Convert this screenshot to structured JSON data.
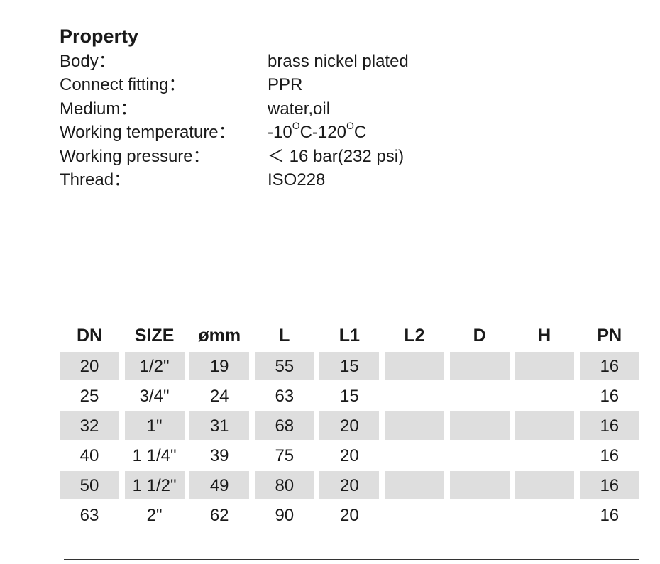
{
  "property": {
    "title": "Property",
    "rows": [
      {
        "label": "Body：",
        "value": "brass nickel plated"
      },
      {
        "label": "Connect fitting：",
        "value": "PPR"
      },
      {
        "label": "Medium：",
        "value": "water,oil"
      },
      {
        "label": "Working temperature：",
        "value_prefix": "-10",
        "value_sup1": "O",
        "value_mid": "C-120",
        "value_sup2": "O",
        "value_suffix": "C"
      },
      {
        "label": "Working pressure：",
        "value": "＜ 16 bar(232 psi)"
      },
      {
        "label": "Thread：",
        "value": "ISO228"
      }
    ]
  },
  "table": {
    "headers": [
      "DN",
      "SIZE",
      "ømm",
      "L",
      "L1",
      "L2",
      "D",
      "H",
      "PN"
    ],
    "rows": [
      [
        "20",
        "1/2\"",
        "19",
        "55",
        "15",
        "",
        "",
        "",
        "16"
      ],
      [
        "25",
        "3/4\"",
        "24",
        "63",
        "15",
        "",
        "",
        "",
        "16"
      ],
      [
        "32",
        "1\"",
        "31",
        "68",
        "20",
        "",
        "",
        "",
        "16"
      ],
      [
        "40",
        "1 1/4\"",
        "39",
        "75",
        "20",
        "",
        "",
        "",
        "16"
      ],
      [
        "50",
        "1 1/2\"",
        "49",
        "80",
        "20",
        "",
        "",
        "",
        "16"
      ],
      [
        "63",
        "2\"",
        "62",
        "90",
        "20",
        "",
        "",
        "",
        "16"
      ]
    ]
  }
}
